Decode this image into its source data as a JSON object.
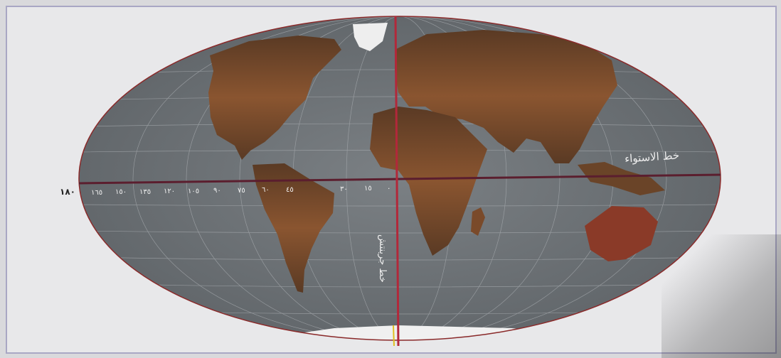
{
  "map": {
    "equator_label": "خط الاستواء",
    "meridian_label": "خط جرينتش",
    "outer_degree_label": "١٨٠",
    "longitude_labels_west": [
      "١٦٥",
      "١٥٠",
      "١٣٥",
      "١٢٠",
      "١٠٥",
      "٩٠",
      "٧٥",
      "٦٠",
      "٤٥",
      "٣٠",
      "١٥",
      "٠"
    ],
    "colors": {
      "ocean": "#6f7478",
      "land": "#7a4a2a",
      "land_dark": "#4a3222",
      "ice": "#f3f3f3",
      "equator_line": "#5b1e2e",
      "meridian_line": "#b2283a",
      "outline": "#8a2a2a"
    }
  }
}
